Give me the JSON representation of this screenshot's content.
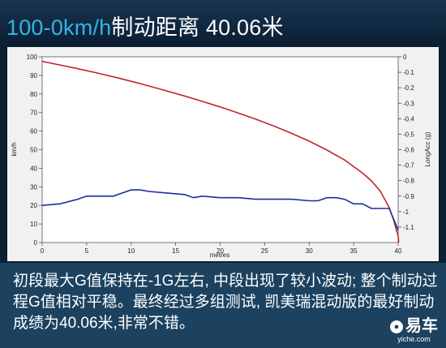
{
  "header": {
    "title_speed": "100-0km/h",
    "title_rest": "制动距离 40.06米"
  },
  "caption": {
    "text": "初段最大G值保持在-1G左右, 中段出现了较小波动; 整个制动过程G值相对平稳。最终经过多组测试, 凯美瑞混动版的最好制动成绩为40.06米,非常不错。"
  },
  "watermark": {
    "logo": "易车",
    "url": "yiche.com"
  },
  "chart_data": {
    "type": "line",
    "xlabel": "metres",
    "ylabel_left": "km/h",
    "ylabel_right": "LongAcc (g)",
    "xlim": [
      0,
      40
    ],
    "ylim_left": [
      0,
      100
    ],
    "ylim_right": [
      -1.2,
      0
    ],
    "x_ticks": [
      "0",
      "5",
      "10",
      "15",
      "20",
      "25",
      "30",
      "35",
      "40"
    ],
    "y_left_ticks": [
      "0",
      "10",
      "20",
      "30",
      "40",
      "50",
      "60",
      "70",
      "80",
      "90",
      "100"
    ],
    "y_right_ticks": [
      "0",
      "-0.1",
      "-0.2",
      "-0.3",
      "-0.4",
      "-0.5",
      "-0.6",
      "-0.7",
      "-0.8",
      "-0.9",
      "-1",
      "-1.1"
    ],
    "grid": false,
    "colors": {
      "speed": "#c0262a",
      "acc": "#1d2d9a",
      "axis_right": "#2c3aa8"
    },
    "series": [
      {
        "axis": "left",
        "x": [
          0,
          2,
          4,
          6,
          8,
          10,
          12,
          14,
          16,
          18,
          20,
          22,
          24,
          26,
          28,
          30,
          32,
          34,
          36,
          37,
          38,
          39,
          39.5,
          40,
          40.06
        ],
        "y": [
          97.5,
          95.6,
          93.6,
          91.5,
          89.2,
          86.8,
          84.3,
          81.6,
          78.9,
          76,
          73,
          69.8,
          66.4,
          62.8,
          58.8,
          54.6,
          49.8,
          44.4,
          37.4,
          33.2,
          27.6,
          18.8,
          12,
          3.5,
          0
        ]
      },
      {
        "axis": "right",
        "x": [
          0,
          2,
          4,
          5,
          6,
          8,
          9,
          10,
          11,
          12,
          14,
          16,
          17,
          18,
          20,
          22,
          24,
          25,
          26,
          28,
          30,
          31,
          32,
          33,
          34,
          35,
          36,
          37,
          38,
          39,
          40
        ],
        "y": [
          -0.96,
          -0.95,
          -0.92,
          -0.9,
          -0.9,
          -0.9,
          -0.88,
          -0.86,
          -0.86,
          -0.87,
          -0.88,
          -0.89,
          -0.91,
          -0.9,
          -0.91,
          -0.91,
          -0.92,
          -0.92,
          -0.92,
          -0.92,
          -0.93,
          -0.93,
          -0.91,
          -0.91,
          -0.92,
          -0.95,
          -0.95,
          -0.98,
          -0.98,
          -0.98,
          -1.12
        ]
      }
    ]
  }
}
